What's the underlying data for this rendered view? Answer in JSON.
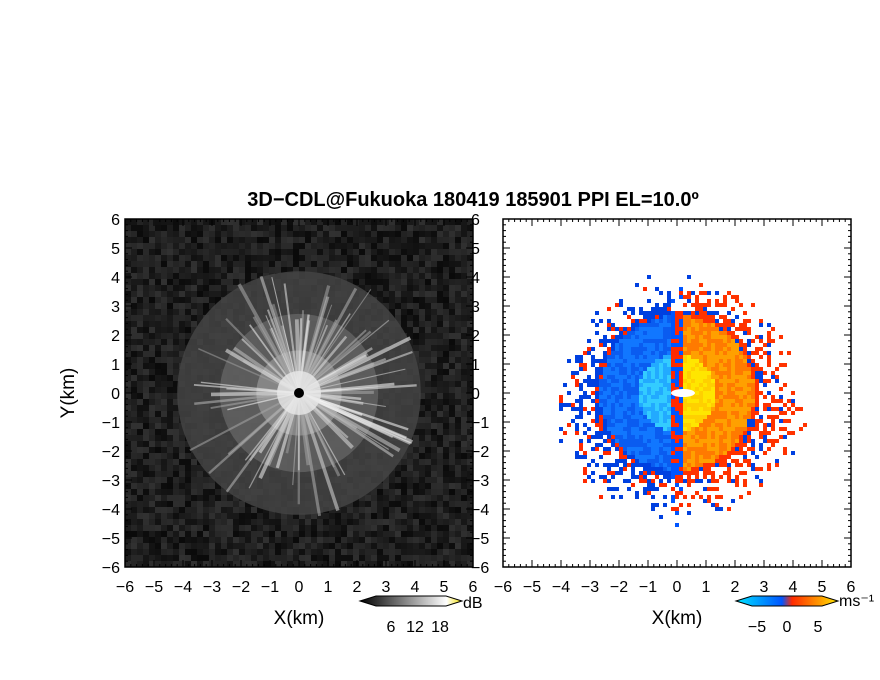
{
  "title": "3D−CDL@Fukuoka 180419 185901 PPI EL=10.0º",
  "chart_data": [
    {
      "type": "heatmap",
      "quantity": "reflectivity",
      "xlabel": "X(km)",
      "ylabel": "Y(km)",
      "xlim": [
        -6,
        6
      ],
      "ylim": [
        -6,
        6
      ],
      "xticks": [
        "−6",
        "−5",
        "−4",
        "−3",
        "−2",
        "−1",
        "0",
        "1",
        "2",
        "3",
        "4",
        "5",
        "6"
      ],
      "yticks": [
        "6",
        "5",
        "4",
        "3",
        "2",
        "1",
        "0",
        "−1",
        "−2",
        "−3",
        "−4",
        "−5",
        "−6"
      ],
      "radar_center": [
        0,
        0
      ],
      "echo_radius_km": 4.2,
      "colorbar": {
        "unit": "dB",
        "ticks": [
          "6",
          "12",
          "18"
        ],
        "colors": [
          "#000000",
          "#ffffff",
          "#f2e000"
        ]
      }
    },
    {
      "type": "heatmap",
      "quantity": "doppler-velocity",
      "xlabel": "X(km)",
      "xlim": [
        -6,
        6
      ],
      "ylim": [
        -6,
        6
      ],
      "xticks": [
        "−6",
        "−5",
        "−4",
        "−3",
        "−2",
        "−1",
        "0",
        "1",
        "2",
        "3",
        "4",
        "5",
        "6"
      ],
      "yticks": [
        "6",
        "5",
        "4",
        "3",
        "2",
        "1",
        "0",
        "−1",
        "−2",
        "−3",
        "−4",
        "−5",
        "−6"
      ],
      "radar_center": [
        0,
        0
      ],
      "echo_radius_km": 3.8,
      "colorbar": {
        "unit": "ms⁻¹",
        "ticks": [
          "−5",
          "0",
          "5"
        ],
        "colors": [
          "#00e5ff",
          "#0055ff",
          "#ff2a00",
          "#ffe600"
        ]
      }
    }
  ]
}
